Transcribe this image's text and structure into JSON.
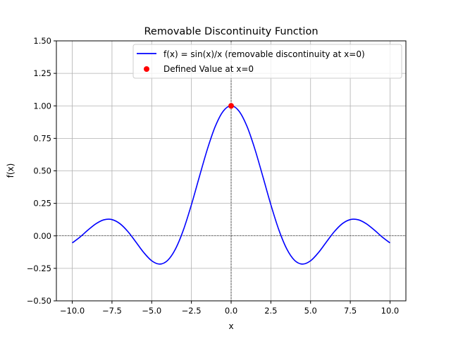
{
  "chart_data": {
    "type": "line",
    "title": "Removable Discontinuity Function",
    "xlabel": "x",
    "ylabel": "f(x)",
    "xlim": [
      -11,
      11
    ],
    "ylim": [
      -0.5,
      1.5
    ],
    "grid": true,
    "legend_position": "top-right",
    "xticks": [
      -10,
      -7.5,
      -5,
      -2.5,
      0,
      2.5,
      5,
      7.5,
      10
    ],
    "xtick_labels": [
      "−10.0",
      "−7.5",
      "−5.0",
      "−2.5",
      "0.0",
      "2.5",
      "5.0",
      "7.5",
      "10.0"
    ],
    "yticks": [
      -0.5,
      -0.25,
      0,
      0.25,
      0.5,
      0.75,
      1.0,
      1.25,
      1.5
    ],
    "ytick_labels": [
      "−0.50",
      "−0.25",
      "0.00",
      "0.25",
      "0.50",
      "0.75",
      "1.00",
      "1.25",
      "1.50"
    ],
    "reference_lines": {
      "horizontal": 0,
      "vertical": 0,
      "color": "#000000",
      "style": "dashed"
    },
    "series": [
      {
        "name": "f(x) = sin(x)/x (removable discontinuity at x=0)",
        "kind": "line",
        "color": "#0000ff",
        "x": [
          -10,
          -9.5,
          -9,
          -8.5,
          -8,
          -7.5,
          -7,
          -6.5,
          -6,
          -5.5,
          -5,
          -4.5,
          -4,
          -3.5,
          -3,
          -2.5,
          -2,
          -1.5,
          -1,
          -0.5,
          0,
          0.5,
          1,
          1.5,
          2,
          2.5,
          3,
          3.5,
          4,
          4.5,
          5,
          5.5,
          6,
          6.5,
          7,
          7.5,
          8,
          8.5,
          9,
          9.5,
          10
        ],
        "y": [
          -0.0544,
          -0.0079,
          0.0458,
          0.0939,
          0.1237,
          0.1251,
          0.0939,
          0.0331,
          -0.0466,
          -0.1283,
          -0.1918,
          -0.2172,
          -0.1892,
          -0.1002,
          0.047,
          0.2394,
          0.4546,
          0.665,
          0.8415,
          0.9589,
          1.0,
          0.9589,
          0.8415,
          0.665,
          0.4546,
          0.2394,
          0.047,
          -0.1002,
          -0.1892,
          -0.2172,
          -0.1918,
          -0.1283,
          -0.0466,
          0.0331,
          0.0939,
          0.1251,
          0.1237,
          0.0939,
          0.0458,
          -0.0079,
          -0.0544
        ]
      },
      {
        "name": "Defined Value at x=0",
        "kind": "scatter",
        "color": "#ff0000",
        "x": [
          0
        ],
        "y": [
          1
        ]
      }
    ]
  }
}
